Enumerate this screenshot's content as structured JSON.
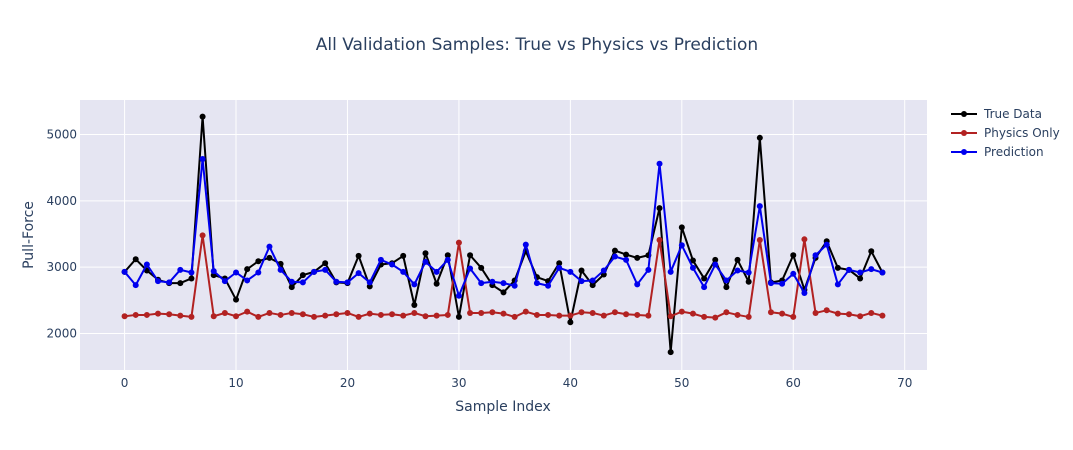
{
  "chart_data": {
    "type": "line",
    "title": "All Validation Samples: True vs Physics vs Prediction",
    "xlabel": "Sample Index",
    "ylabel": "Pull-Force",
    "xlim": [
      -4,
      72
    ],
    "ylim": [
      1450,
      5520
    ],
    "x_ticks": [
      0,
      10,
      20,
      30,
      40,
      50,
      60,
      70
    ],
    "y_ticks": [
      2000,
      3000,
      4000,
      5000
    ],
    "grid": true,
    "legend_position": "top-right",
    "background": "#e5e5f2",
    "series": [
      {
        "name": "True Data",
        "color": "#000000",
        "values": [
          2930,
          3120,
          2950,
          2810,
          2760,
          2760,
          2830,
          5270,
          2880,
          2830,
          2510,
          2970,
          3090,
          3140,
          3050,
          2700,
          2880,
          2930,
          3060,
          2770,
          2760,
          3170,
          2710,
          3040,
          3060,
          3170,
          2430,
          3210,
          2750,
          3180,
          2250,
          3180,
          2990,
          2730,
          2620,
          2800,
          3240,
          2850,
          2790,
          3060,
          2170,
          2950,
          2730,
          2890,
          3250,
          3190,
          3140,
          3180,
          3890,
          1720,
          3600,
          3100,
          2830,
          3110,
          2700,
          3110,
          2780,
          4950,
          2770,
          2800,
          3180,
          2660,
          3140,
          3390,
          2990,
          2960,
          2830,
          3240,
          2920
        ]
      },
      {
        "name": "Physics Only",
        "color": "#b22222",
        "values": [
          2260,
          2280,
          2280,
          2300,
          2290,
          2270,
          2250,
          3480,
          2260,
          2310,
          2260,
          2330,
          2250,
          2310,
          2280,
          2310,
          2290,
          2250,
          2270,
          2290,
          2310,
          2250,
          2300,
          2280,
          2290,
          2270,
          2310,
          2260,
          2270,
          2280,
          3370,
          2310,
          2310,
          2320,
          2300,
          2250,
          2330,
          2280,
          2280,
          2270,
          2270,
          2320,
          2310,
          2270,
          2320,
          2290,
          2280,
          2270,
          3410,
          2260,
          2330,
          2300,
          2250,
          2240,
          2320,
          2280,
          2250,
          3410,
          2320,
          2300,
          2250,
          3420,
          2310,
          2350,
          2300,
          2290,
          2260,
          2310,
          2270
        ]
      },
      {
        "name": "Prediction",
        "color": "#0000ee",
        "values": [
          2930,
          2730,
          3040,
          2790,
          2770,
          2960,
          2920,
          4630,
          2940,
          2790,
          2920,
          2800,
          2920,
          3310,
          2960,
          2780,
          2770,
          2930,
          2960,
          2780,
          2770,
          2910,
          2770,
          3110,
          3040,
          2930,
          2740,
          3080,
          2930,
          3110,
          2570,
          2980,
          2760,
          2780,
          2760,
          2720,
          3340,
          2760,
          2720,
          2990,
          2930,
          2790,
          2800,
          2950,
          3160,
          3110,
          2740,
          2960,
          4560,
          2930,
          3330,
          2990,
          2700,
          3040,
          2800,
          2950,
          2920,
          3920,
          2760,
          2750,
          2900,
          2610,
          3180,
          3340,
          2740,
          2960,
          2920,
          2970,
          2920
        ]
      }
    ]
  }
}
